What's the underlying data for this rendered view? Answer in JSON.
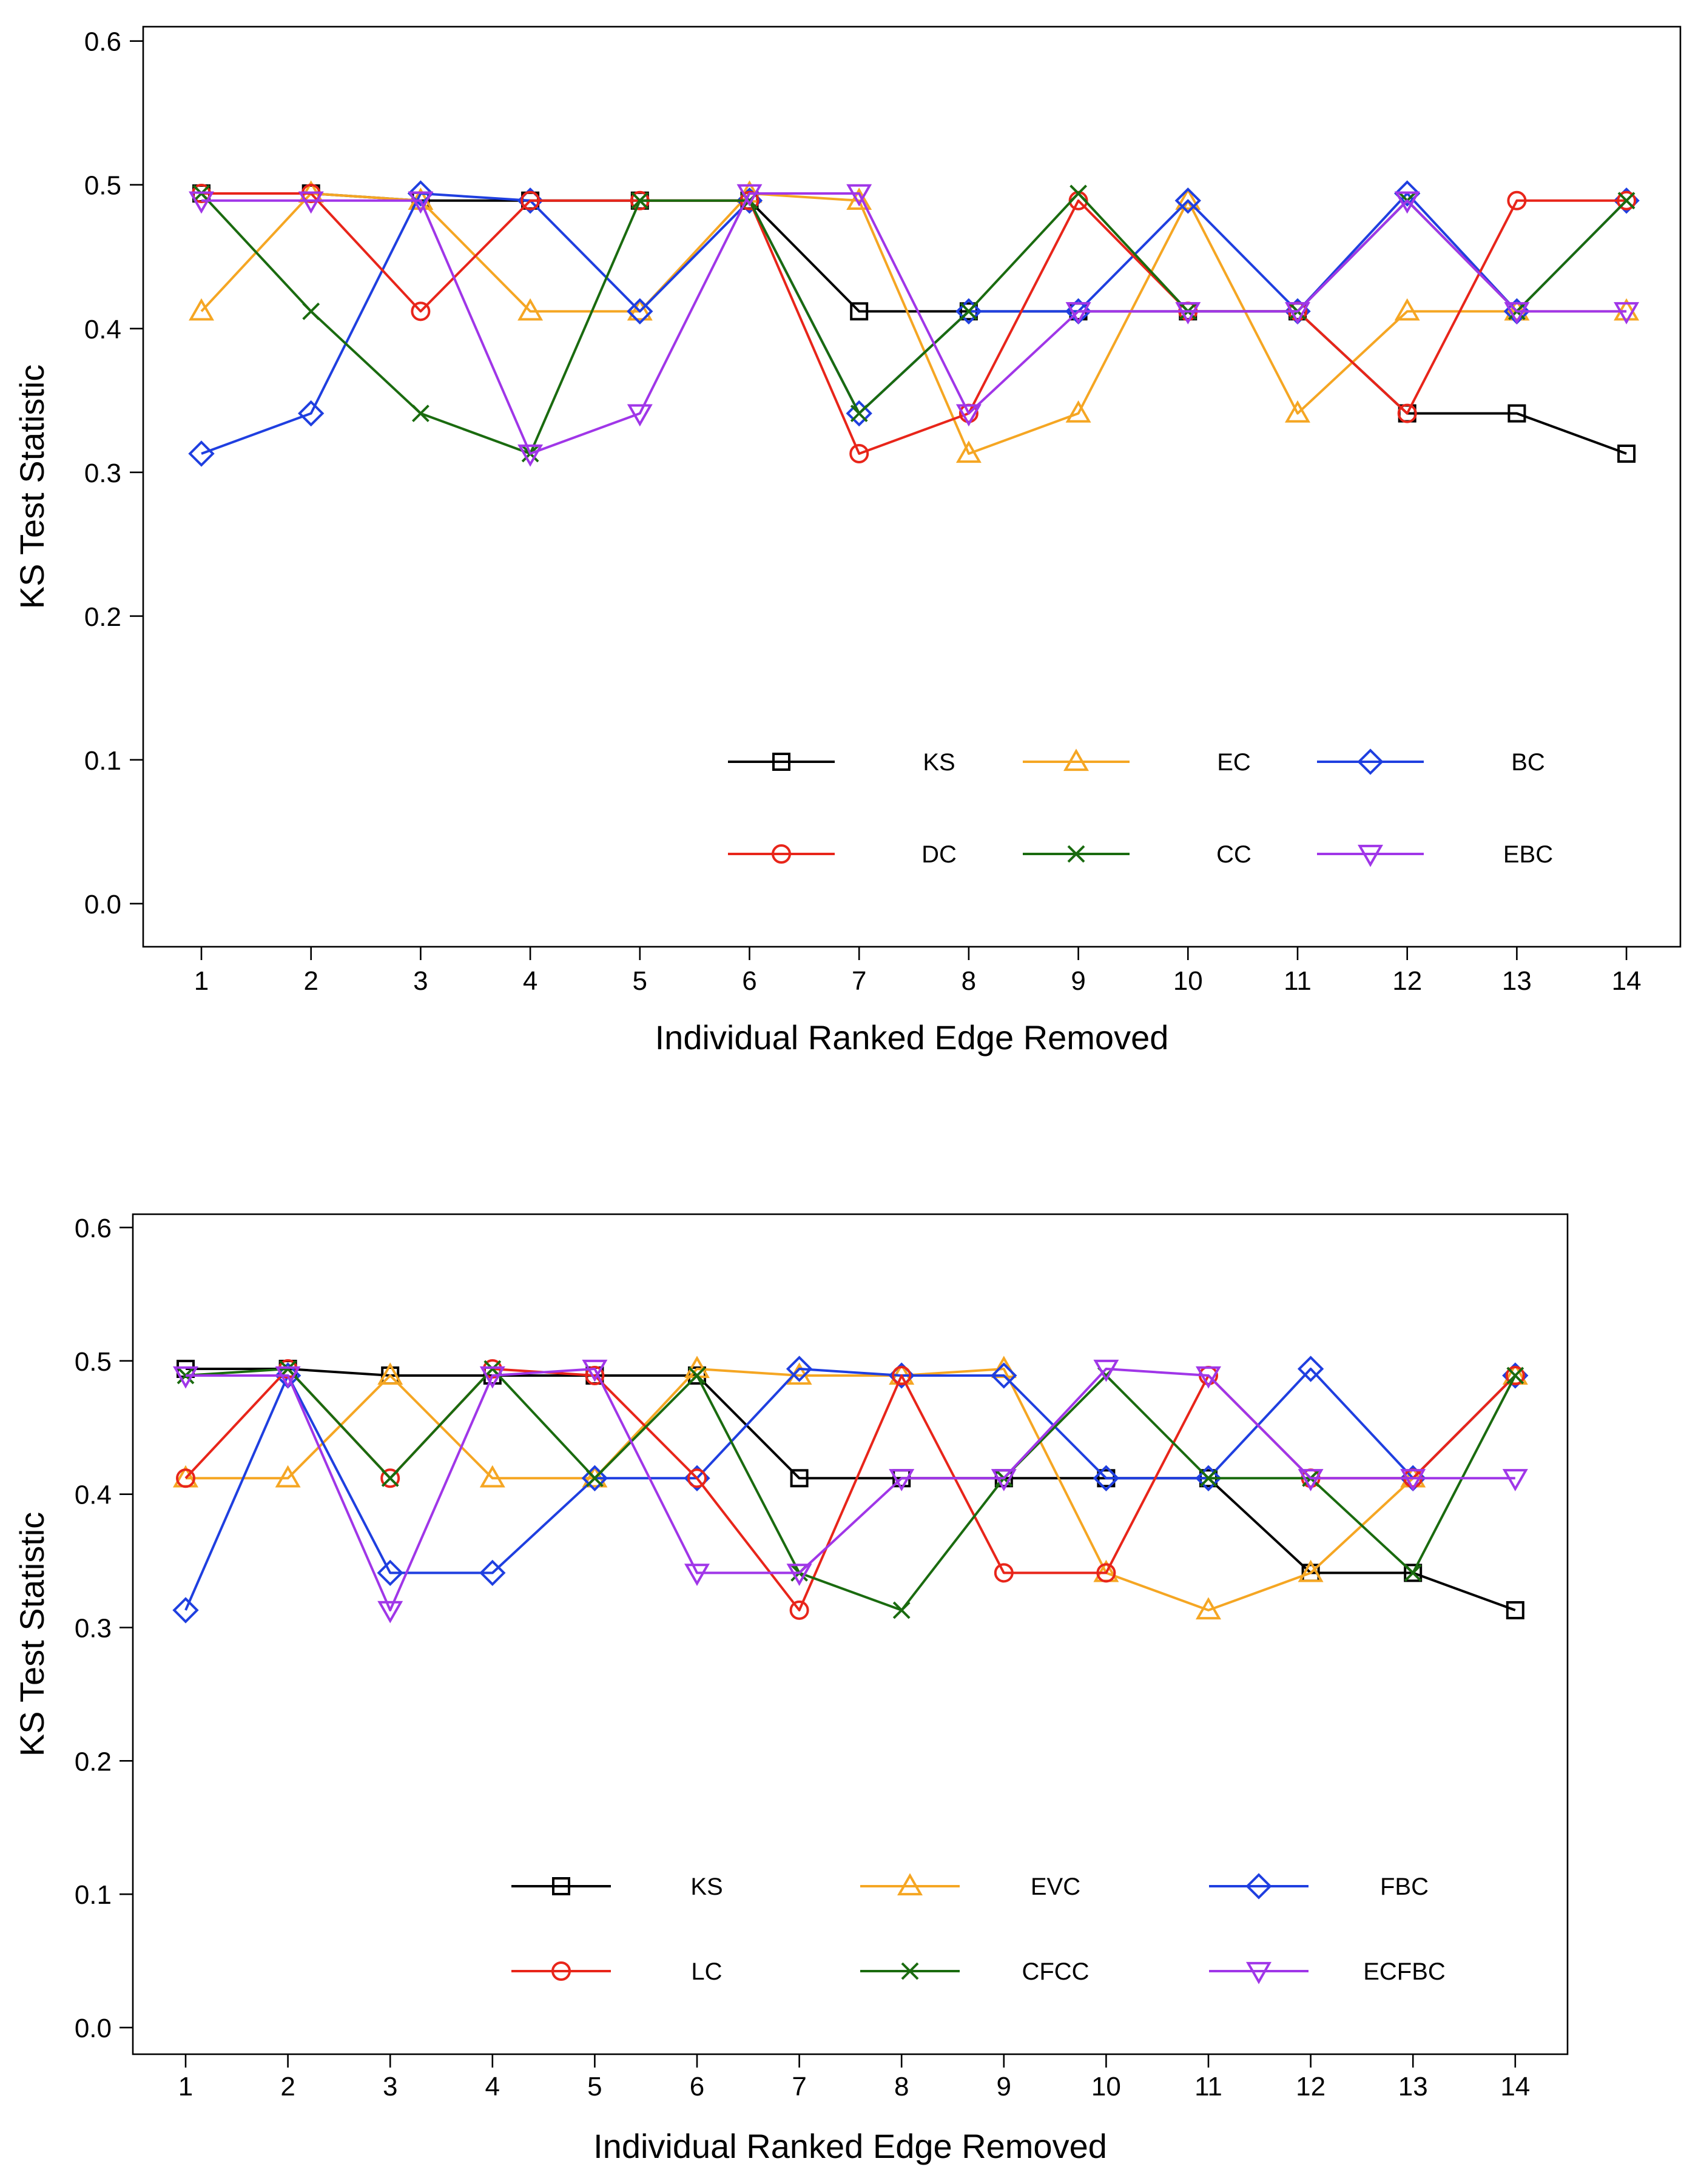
{
  "chart_data": [
    {
      "type": "line",
      "title": "",
      "xlabel": "Individual Ranked Edge Removed",
      "ylabel": "KS Test Statistic",
      "xlim": [
        0.5,
        14.5
      ],
      "ylim": [
        -0.03,
        0.61
      ],
      "yticks": [
        "0.0",
        "0.1",
        "0.2",
        "0.3",
        "0.4",
        "0.5",
        "0.6"
      ],
      "x": [
        1,
        2,
        3,
        4,
        5,
        6,
        7,
        8,
        9,
        10,
        11,
        12,
        13,
        14
      ],
      "legend_position": "bottom-right",
      "series": [
        {
          "name": "KS",
          "color": "#000000",
          "marker": "square",
          "values": [
            0.494,
            0.494,
            0.489,
            0.489,
            0.489,
            0.489,
            0.412,
            0.412,
            0.412,
            0.412,
            0.412,
            0.341,
            0.341,
            0.313
          ]
        },
        {
          "name": "EC",
          "color": "#f5a623",
          "marker": "triangle-up",
          "values": [
            0.412,
            0.494,
            0.489,
            0.412,
            0.412,
            0.494,
            0.489,
            0.313,
            0.341,
            0.489,
            0.341,
            0.412,
            0.412,
            0.412
          ]
        },
        {
          "name": "BC",
          "color": "#1f3fe0",
          "marker": "diamond",
          "values": [
            0.313,
            0.341,
            0.494,
            0.489,
            0.412,
            0.489,
            0.341,
            0.412,
            0.412,
            0.489,
            0.412,
            0.494,
            0.412,
            0.489
          ]
        },
        {
          "name": "DC",
          "color": "#e8251a",
          "marker": "circle",
          "values": [
            0.494,
            0.494,
            0.412,
            0.489,
            0.489,
            0.489,
            0.313,
            0.341,
            0.489,
            0.412,
            0.412,
            0.341,
            0.489,
            0.489
          ]
        },
        {
          "name": "CC",
          "color": "#1a6b0f",
          "marker": "x",
          "values": [
            0.494,
            0.412,
            0.341,
            0.313,
            0.489,
            0.489,
            0.341,
            0.412,
            0.494,
            0.412,
            0.412,
            0.489,
            0.412,
            0.489
          ]
        },
        {
          "name": "EBC",
          "color": "#a036e8",
          "marker": "triangle-down",
          "values": [
            0.489,
            0.489,
            0.489,
            0.313,
            0.341,
            0.494,
            0.494,
            0.341,
            0.412,
            0.412,
            0.412,
            0.489,
            0.412,
            0.412
          ]
        }
      ]
    },
    {
      "type": "line",
      "title": "",
      "xlabel": "Individual Ranked Edge Removed",
      "ylabel": "KS Test Statistic",
      "xlim": [
        0.5,
        14.5
      ],
      "ylim": [
        -0.02,
        0.61
      ],
      "yticks": [
        "0.0",
        "0.1",
        "0.2",
        "0.3",
        "0.4",
        "0.5",
        "0.6"
      ],
      "x": [
        1,
        2,
        3,
        4,
        5,
        6,
        7,
        8,
        9,
        10,
        11,
        12,
        13,
        14
      ],
      "legend_position": "bottom-center",
      "series": [
        {
          "name": "KS",
          "color": "#000000",
          "marker": "square",
          "values": [
            0.494,
            0.494,
            0.489,
            0.489,
            0.489,
            0.489,
            0.412,
            0.412,
            0.412,
            0.412,
            0.412,
            0.341,
            0.341,
            0.313
          ]
        },
        {
          "name": "EVC",
          "color": "#f5a623",
          "marker": "triangle-up",
          "values": [
            0.412,
            0.412,
            0.489,
            0.412,
            0.412,
            0.494,
            0.489,
            0.489,
            0.494,
            0.341,
            0.313,
            0.341,
            0.412,
            0.489
          ]
        },
        {
          "name": "FBC",
          "color": "#1f3fe0",
          "marker": "diamond",
          "values": [
            0.313,
            0.489,
            0.341,
            0.341,
            0.412,
            0.412,
            0.494,
            0.489,
            0.489,
            0.412,
            0.412,
            0.494,
            0.412,
            0.489
          ]
        },
        {
          "name": "LC",
          "color": "#e8251a",
          "marker": "circle",
          "values": [
            0.412,
            0.494,
            0.412,
            0.494,
            0.489,
            0.412,
            0.313,
            0.489,
            0.341,
            0.341,
            0.489,
            0.412,
            0.412,
            0.489
          ]
        },
        {
          "name": "CFCC",
          "color": "#1a6b0f",
          "marker": "x",
          "values": [
            0.489,
            0.494,
            0.412,
            0.494,
            0.412,
            0.489,
            0.341,
            0.313,
            0.412,
            0.489,
            0.412,
            0.412,
            0.341,
            0.489
          ]
        },
        {
          "name": "ECFBC",
          "color": "#a036e8",
          "marker": "triangle-down",
          "values": [
            0.489,
            0.489,
            0.313,
            0.489,
            0.494,
            0.341,
            0.341,
            0.412,
            0.412,
            0.494,
            0.489,
            0.412,
            0.412,
            0.412
          ]
        }
      ]
    }
  ]
}
